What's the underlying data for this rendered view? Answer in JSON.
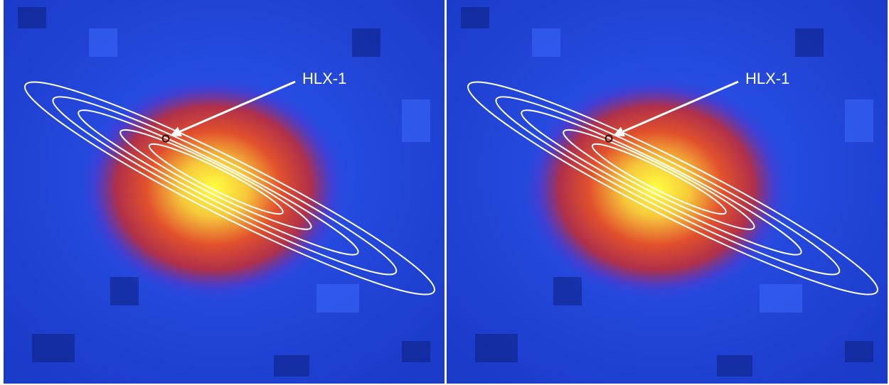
{
  "panels": [
    {
      "label": "HLX-1"
    },
    {
      "label": "HLX-1"
    }
  ]
}
